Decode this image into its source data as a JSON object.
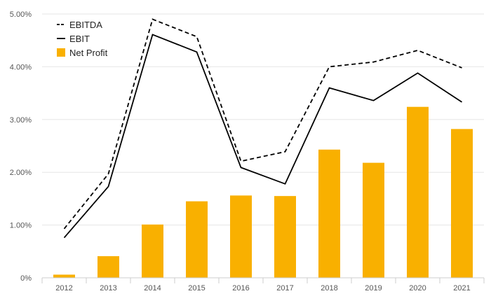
{
  "chart_data": {
    "type": "bar",
    "title": "",
    "xlabel": "",
    "ylabel": "",
    "categories": [
      "2012",
      "2013",
      "2014",
      "2015",
      "2016",
      "2017",
      "2018",
      "2019",
      "2020",
      "2021"
    ],
    "ylim": [
      0,
      5
    ],
    "y_ticks": [
      0,
      1,
      2,
      3,
      4,
      5
    ],
    "y_tick_labels": [
      "0%",
      "1.00%",
      "2.00%",
      "3.00%",
      "4.00%",
      "5.00%"
    ],
    "grid": "horizontal",
    "legend_position": "top-left",
    "series": [
      {
        "name": "EBITDA",
        "type": "line",
        "style": "dashed",
        "color": "#000000",
        "values": [
          0.93,
          1.97,
          4.9,
          4.57,
          2.21,
          2.39,
          4.0,
          4.09,
          4.31,
          3.98
        ]
      },
      {
        "name": "EBIT",
        "type": "line",
        "style": "solid",
        "color": "#000000",
        "values": [
          0.76,
          1.73,
          4.61,
          4.28,
          2.09,
          1.78,
          3.6,
          3.36,
          3.88,
          3.33
        ]
      },
      {
        "name": "Net Profit",
        "type": "bar",
        "color": "#F9B000",
        "values": [
          0.06,
          0.41,
          1.01,
          1.45,
          1.56,
          1.55,
          2.43,
          2.18,
          3.24,
          2.82
        ]
      }
    ]
  }
}
